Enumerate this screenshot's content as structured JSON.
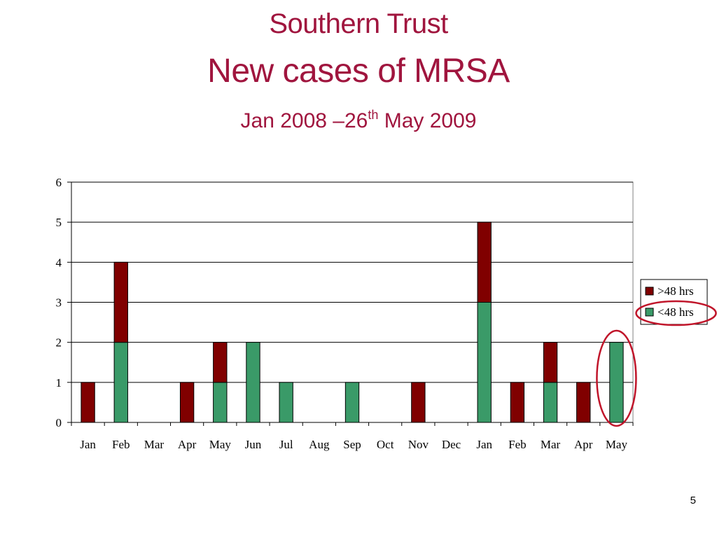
{
  "slide": {
    "title_line1": "Southern Trust",
    "title_line2": "New cases of MRSA",
    "subtitle_pre": "Jan 2008 –26",
    "subtitle_sup": "th",
    "subtitle_post": " May 2009",
    "page_number": "5"
  },
  "chart_data": {
    "type": "bar",
    "stacked": true,
    "categories": [
      "Jan",
      "Feb",
      "Mar",
      "Apr",
      "May",
      "Jun",
      "Jul",
      "Aug",
      "Sep",
      "Oct",
      "Nov",
      "Dec",
      "Jan",
      "Feb",
      "Mar",
      "Apr",
      "May"
    ],
    "series": [
      {
        "name": "<48 hrs",
        "color": "#3a9a68",
        "values": [
          0,
          2,
          0,
          0,
          1,
          2,
          1,
          0,
          1,
          0,
          0,
          0,
          3,
          0,
          1,
          0,
          2
        ]
      },
      {
        "name": ">48 hrs",
        "color": "#800000",
        "values": [
          1,
          2,
          0,
          1,
          1,
          0,
          0,
          0,
          0,
          0,
          1,
          0,
          2,
          1,
          1,
          1,
          0
        ]
      }
    ],
    "legend_order": [
      ">48 hrs",
      "<48 hrs"
    ],
    "ylim": [
      0,
      6
    ],
    "yticks": [
      0,
      1,
      2,
      3,
      4,
      5,
      6
    ],
    "grid": true,
    "legend_position": "right",
    "highlight_color": "#c0152a",
    "highlights": [
      "last-category",
      "legend-entry-<48 hrs"
    ]
  }
}
